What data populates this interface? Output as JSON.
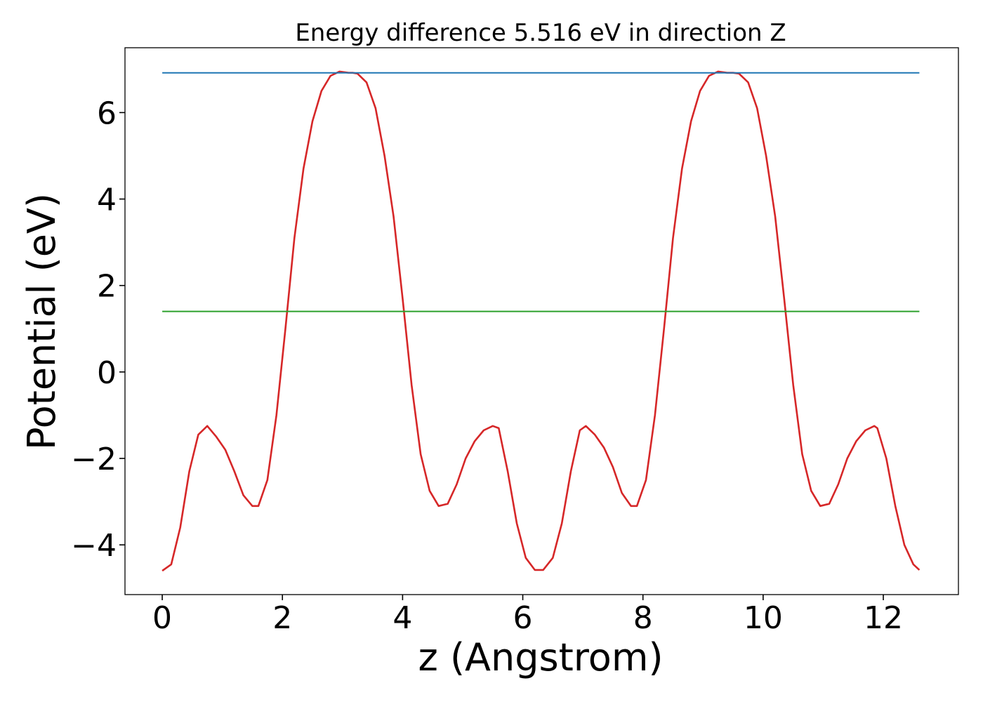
{
  "chart_data": {
    "type": "line",
    "title": "Energy difference 5.516 eV in direction Z",
    "xlabel": "z (Angstrom)",
    "ylabel": "Potential (eV)",
    "xlim": [
      -0.62,
      13.25
    ],
    "ylim": [
      -5.15,
      7.5
    ],
    "xticks": [
      0,
      2,
      4,
      6,
      8,
      10,
      12
    ],
    "xtick_labels": [
      "0",
      "2",
      "4",
      "6",
      "8",
      "10",
      "12"
    ],
    "yticks": [
      -4,
      -2,
      0,
      2,
      4,
      6
    ],
    "ytick_labels": [
      "−4",
      "−2",
      "0",
      "2",
      "4",
      "6"
    ],
    "grid": false,
    "legend": "none",
    "series": [
      {
        "color": "#d62728",
        "x": [
          0,
          0.15,
          0.3,
          0.45,
          0.6,
          0.75,
          0.9,
          1.05,
          1.2,
          1.35,
          1.5,
          1.6,
          1.75,
          1.9,
          2.05,
          2.2,
          2.35,
          2.5,
          2.65,
          2.8,
          2.95,
          3.1,
          3.17,
          3.25,
          3.4,
          3.55,
          3.7,
          3.85,
          4.0,
          4.15,
          4.3,
          4.45,
          4.6,
          4.75,
          4.9,
          5.05,
          5.2,
          5.35,
          5.5,
          5.6,
          5.75,
          5.9,
          6.05,
          6.2,
          6.34,
          6.5,
          6.65,
          6.8,
          6.95,
          7.05,
          7.2,
          7.35,
          7.5,
          7.65,
          7.8,
          7.9,
          8.05,
          8.2,
          8.35,
          8.5,
          8.65,
          8.8,
          8.95,
          9.1,
          9.25,
          9.4,
          9.5,
          9.6,
          9.75,
          9.9,
          10.05,
          10.2,
          10.35,
          10.5,
          10.65,
          10.8,
          10.95,
          11.1,
          11.25,
          11.4,
          11.55,
          11.7,
          11.85,
          11.9,
          12.05,
          12.2,
          12.35,
          12.5,
          12.6
        ],
        "y": [
          -4.6,
          -4.45,
          -3.6,
          -2.3,
          -1.45,
          -1.25,
          -1.5,
          -1.8,
          -2.3,
          -2.85,
          -3.1,
          -3.1,
          -2.5,
          -1.0,
          1.0,
          3.1,
          4.7,
          5.8,
          6.5,
          6.85,
          6.95,
          6.92,
          6.92,
          6.9,
          6.7,
          6.1,
          5.0,
          3.6,
          1.7,
          -0.3,
          -1.9,
          -2.75,
          -3.1,
          -3.05,
          -2.6,
          -2.0,
          -1.6,
          -1.35,
          -1.25,
          -1.3,
          -2.3,
          -3.5,
          -4.3,
          -4.58,
          -4.58,
          -4.3,
          -3.5,
          -2.3,
          -1.35,
          -1.25,
          -1.45,
          -1.75,
          -2.2,
          -2.8,
          -3.1,
          -3.1,
          -2.5,
          -1.0,
          1.0,
          3.1,
          4.7,
          5.8,
          6.5,
          6.85,
          6.95,
          6.92,
          6.92,
          6.9,
          6.7,
          6.1,
          5.0,
          3.6,
          1.7,
          -0.3,
          -1.9,
          -2.75,
          -3.1,
          -3.05,
          -2.6,
          -2.0,
          -1.6,
          -1.35,
          -1.25,
          -1.3,
          -2.0,
          -3.1,
          -4.0,
          -4.45,
          -4.58
        ]
      },
      {
        "color": "#1f77b4",
        "x": [
          0,
          12.6
        ],
        "y": [
          6.92,
          6.92
        ]
      },
      {
        "color": "#2ca02c",
        "x": [
          0,
          12.6
        ],
        "y": [
          1.4,
          1.4
        ]
      }
    ]
  }
}
